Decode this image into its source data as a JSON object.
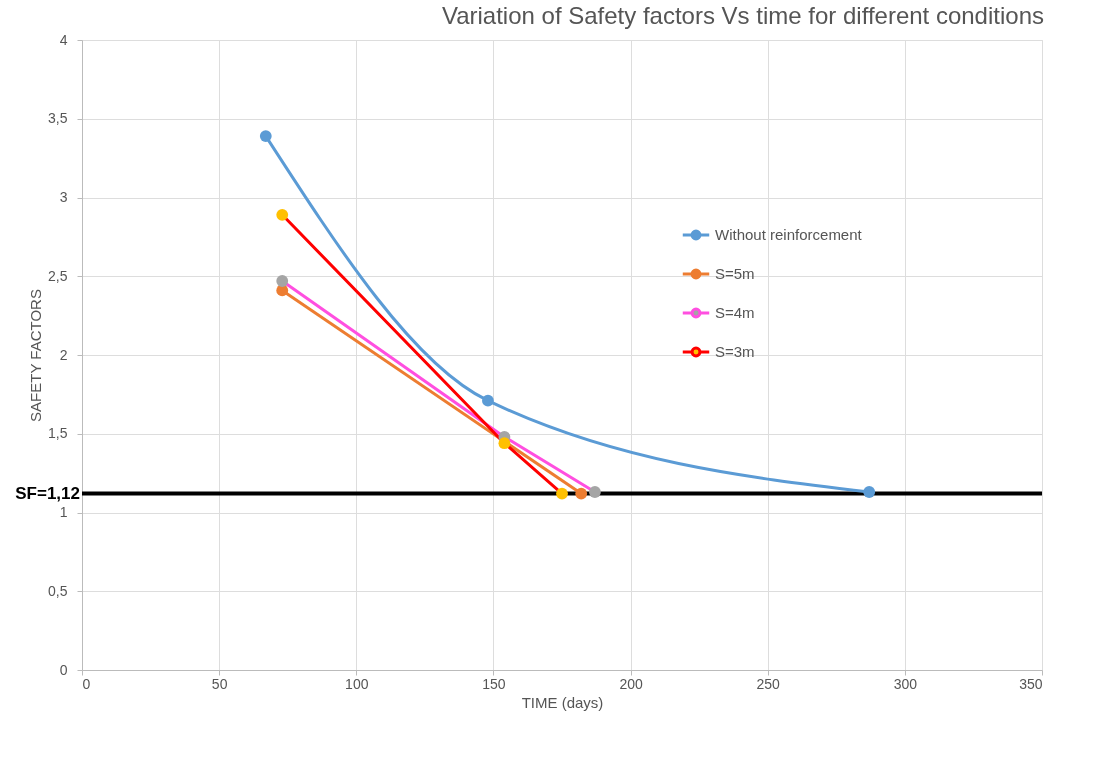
{
  "chart_data": {
    "type": "line",
    "title": "Variation of Safety factors Vs time for different conditions",
    "xlabel": "TIME (days)",
    "ylabel": "SAFETY FACTORS",
    "series": [
      {
        "name": "Without reinforcement",
        "color": "#5b9bd5",
        "colors": [
          "#5b9bd5",
          "#5b9bd5",
          "#5b9bd5"
        ],
        "x": [
          67,
          148,
          287
        ],
        "values": [
          3.39,
          1.71,
          1.13
        ]
      },
      {
        "name": "S=5m",
        "color": "#ed7d31",
        "colors": [
          "#ed7d31",
          "#ed7d31",
          "#ed7d31"
        ],
        "x": [
          73,
          154,
          182
        ],
        "values": [
          2.41,
          null,
          1.12
        ]
      },
      {
        "name": "S=4m",
        "color": "#ff4fe0",
        "colors": [
          "#a5a5a5",
          "#a5a5a5",
          "#a5a5a5"
        ],
        "x": [
          73,
          154,
          187
        ],
        "values": [
          2.47,
          1.48,
          1.13
        ]
      },
      {
        "name": "S=3m",
        "color": "#ff0000",
        "colors": [
          "#ffc000",
          "#ffc000",
          "#ffc000"
        ],
        "x": [
          73,
          154,
          175
        ],
        "values": [
          2.89,
          1.44,
          1.12
        ]
      }
    ],
    "xlim": [
      0,
      350
    ],
    "xticks": [
      0,
      50,
      100,
      150,
      200,
      250,
      300,
      350
    ],
    "ylim": [
      0,
      4
    ],
    "yticks": [
      0,
      {
        "value": 0.5,
        "label": "0,5"
      },
      1,
      {
        "value": 1.5,
        "label": "1,5"
      },
      2,
      {
        "value": 2.5,
        "label": "2,5"
      },
      3,
      {
        "value": 3.5,
        "label": "3,5"
      },
      4
    ],
    "ref_lines": [
      {
        "axis": "y",
        "value": 1.12,
        "label": "SF=1,12",
        "color": "#000000"
      }
    ],
    "grid": true,
    "legend": "top right",
    "marker": "circle",
    "line_style": "solid"
  }
}
